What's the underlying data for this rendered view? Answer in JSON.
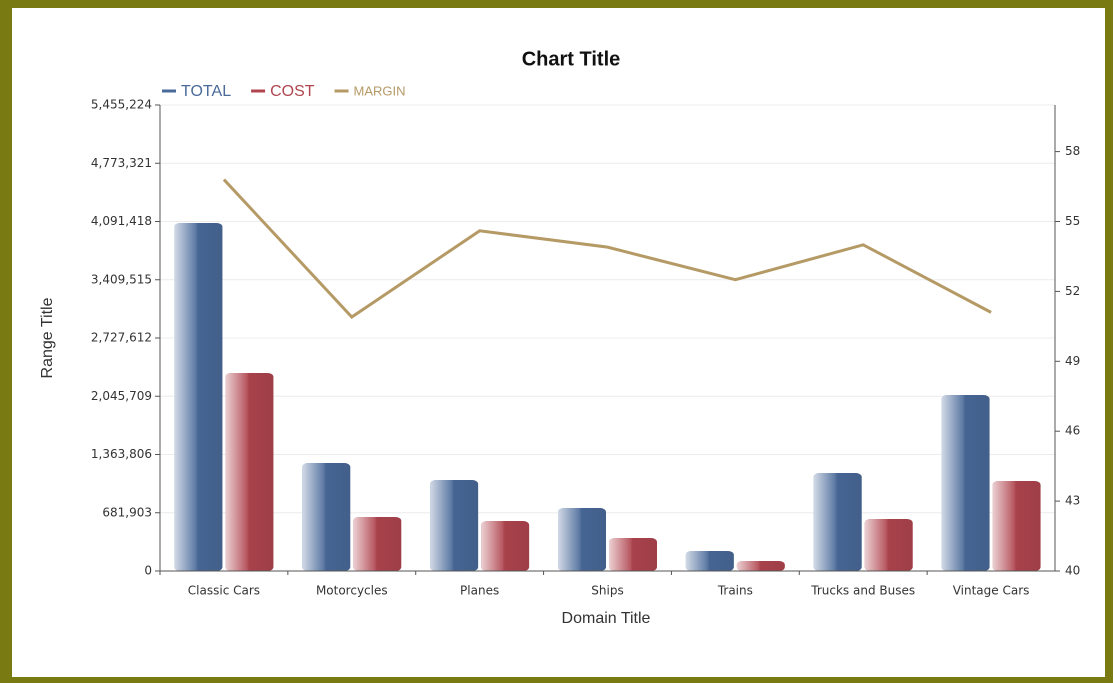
{
  "chart_data": {
    "type": "bar",
    "title": "Chart Title",
    "x_label": "Domain Title",
    "y_label": "Range Title",
    "categories": [
      "Classic Cars",
      "Motorcycles",
      "Planes",
      "Ships",
      "Trains",
      "Trucks and Buses",
      "Vintage Cars"
    ],
    "series": [
      {
        "name": "TOTAL",
        "color": "#4a6a9a",
        "values": [
          4074000,
          1264000,
          1065000,
          737000,
          234000,
          1147000,
          2060000
        ]
      },
      {
        "name": "COST",
        "color": "#b0454f",
        "values": [
          2318000,
          632000,
          585000,
          386000,
          117000,
          609000,
          1054000
        ]
      },
      {
        "name": "MARGIN",
        "color": "#b59a66",
        "type": "line",
        "axis": "y2",
        "values": [
          56.8,
          50.9,
          54.6,
          53.9,
          52.5,
          54.0,
          51.1
        ]
      }
    ],
    "ylim": [
      0,
      5455224
    ],
    "yticks": [
      0,
      {
        "value": 681903,
        "label": "681,903"
      },
      {
        "value": 1363806,
        "label": "1,363,806"
      },
      {
        "value": 2045709,
        "label": "2,045,709"
      },
      {
        "value": 2727612,
        "label": "2,727,612"
      },
      {
        "value": 3409515,
        "label": "3,409,515"
      },
      {
        "value": 4091418,
        "label": "4,091,418"
      },
      {
        "value": 4773321,
        "label": "4,773,321"
      },
      {
        "value": 5455224,
        "label": "5,455,224"
      }
    ],
    "y2lim": [
      40,
      60
    ],
    "y2ticks": [
      40,
      43,
      46,
      49,
      52,
      55,
      58
    ],
    "grid": true,
    "legend": "top-left"
  }
}
